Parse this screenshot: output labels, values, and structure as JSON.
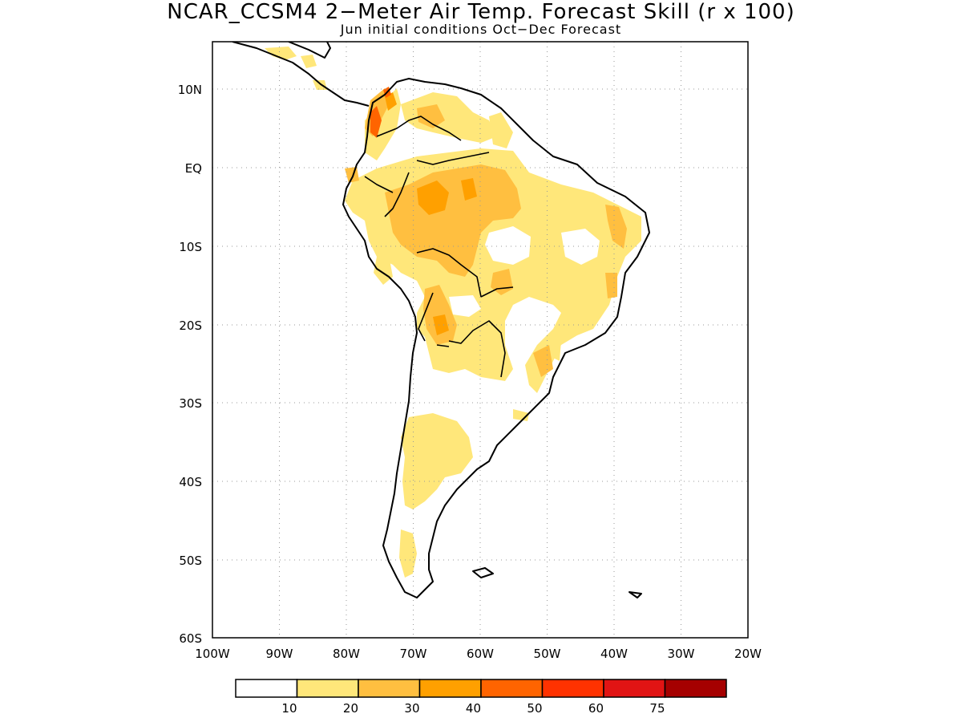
{
  "title": "NCAR_CCSM4 2−Meter Air Temp. Forecast Skill (r x 100)",
  "subtitle": "Jun initial conditions  Oct−Dec Forecast",
  "map": {
    "lon_range": [
      -100,
      -20
    ],
    "lat_range": [
      -60,
      15
    ],
    "lon_ticks": [
      "100W",
      "90W",
      "80W",
      "70W",
      "60W",
      "50W",
      "40W",
      "30W",
      "20W"
    ],
    "lat_ticks": [
      "10N",
      "EQ",
      "10S",
      "20S",
      "30S",
      "40S",
      "50S",
      "60S"
    ],
    "grid": "dotted",
    "region": "South America"
  },
  "colorbar": {
    "levels": [
      "10",
      "20",
      "30",
      "40",
      "50",
      "60",
      "75"
    ],
    "colors": [
      "#ffffff",
      "#ffe77a",
      "#ffbf40",
      "#ffa000",
      "#ff6400",
      "#ff3200",
      "#e11414",
      "#a50000"
    ]
  }
}
